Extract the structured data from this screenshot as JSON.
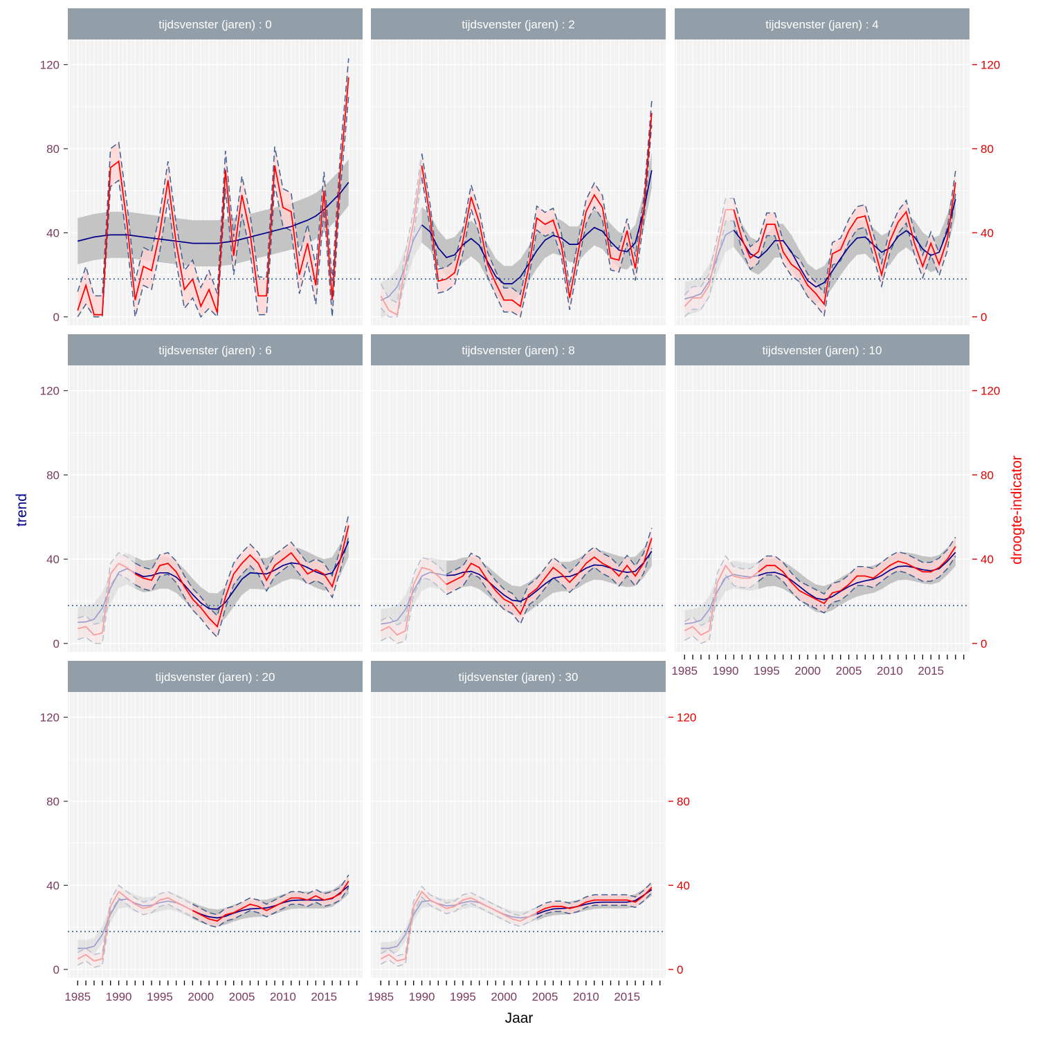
{
  "chart_data": {
    "type": "line",
    "xlabel": "Jaar",
    "ylabel_left": "trend",
    "ylabel_right": "droogte-indicator",
    "ylim": [
      -4,
      132
    ],
    "xlim": [
      1983.8,
      2019.7
    ],
    "y_ticks": [
      0,
      40,
      80,
      120
    ],
    "x_ticks": [
      1985,
      1990,
      1995,
      2000,
      2005,
      2010,
      2015
    ],
    "threshold": 18,
    "grid": true,
    "colors": {
      "trend": "#00008b",
      "trend_band": "#bfbfbf",
      "ci_dash": "#3a5f8f",
      "indicator": "#ff0000",
      "indicator_band": "#ffd5d5",
      "strip": "#929ea8",
      "panel_bg": "#f2f2f2",
      "left_axis": "#7a3a5f",
      "right_axis": "#e00000",
      "threshold": "#3a5f8f"
    },
    "panels": [
      {
        "label": "tijdsvenster (jaren) : 0",
        "window": 0,
        "years": [
          1985,
          1986,
          1987,
          1988,
          1989,
          1990,
          1991,
          1992,
          1993,
          1994,
          1995,
          1996,
          1997,
          1998,
          1999,
          2000,
          2001,
          2002,
          2003,
          2004,
          2005,
          2006,
          2007,
          2008,
          2009,
          2010,
          2011,
          2012,
          2013,
          2014,
          2015,
          2016,
          2017,
          2018
        ],
        "indicator": [
          3,
          15,
          1,
          1,
          71,
          74,
          45,
          8,
          24,
          22,
          40,
          65,
          35,
          13,
          18,
          5,
          13,
          2,
          70,
          29,
          58,
          40,
          10,
          10,
          72,
          52,
          50,
          20,
          35,
          15,
          60,
          8,
          70,
          114
        ],
        "trend": [
          36,
          37,
          38,
          38.5,
          39,
          39,
          39,
          38.5,
          38,
          37.5,
          37,
          36.5,
          36,
          35.5,
          35,
          35,
          35,
          35,
          35.5,
          36,
          37,
          38,
          39,
          40,
          41,
          42,
          43,
          44.5,
          46,
          48,
          51,
          55,
          59,
          64
        ]
      },
      {
        "label": "tijdsvenster (jaren) : 2",
        "window": 2,
        "years": [
          1985,
          1986,
          1987,
          1988,
          1989,
          1990,
          1991,
          1992,
          1993,
          1994,
          1995,
          1996,
          1997,
          1998,
          1999,
          2000,
          2001,
          2002,
          2003,
          2004,
          2005,
          2006,
          2007,
          2008,
          2009,
          2010,
          2011,
          2012,
          2013,
          2014,
          2015,
          2016,
          2017,
          2018
        ],
        "indicator": [
          10,
          3,
          1,
          25,
          45,
          72,
          48,
          17,
          18,
          21,
          36,
          57,
          45,
          25,
          16,
          8,
          8,
          5,
          23,
          47,
          44,
          46,
          34,
          9,
          30,
          50,
          58,
          52,
          28,
          27,
          41,
          23,
          50,
          97
        ],
        "trend": [
          7,
          10,
          12,
          23,
          38,
          48,
          41,
          32,
          26,
          29,
          34,
          40,
          35,
          26,
          18,
          15,
          15,
          18,
          25,
          32,
          37,
          40,
          38,
          34,
          32,
          40,
          44,
          42,
          35,
          31,
          30,
          33,
          45,
          78
        ]
      },
      {
        "label": "tijdsvenster (jaren) : 4",
        "window": 4,
        "years": [
          1985,
          1986,
          1987,
          1988,
          1989,
          1990,
          1991,
          1992,
          1993,
          1994,
          1995,
          1996,
          1997,
          1998,
          1999,
          2000,
          2001,
          2002,
          2003,
          2004,
          2005,
          2006,
          2007,
          2008,
          2009,
          2010,
          2011,
          2012,
          2013,
          2014,
          2015,
          2016,
          2017,
          2018
        ],
        "indicator": [
          5,
          9,
          9,
          15,
          33,
          51,
          51,
          37,
          28,
          31,
          44,
          44,
          31,
          25,
          22,
          15,
          11,
          6,
          30,
          32,
          41,
          47,
          48,
          34,
          20,
          36,
          45,
          50,
          35,
          24,
          35,
          25,
          37,
          64
        ],
        "trend": [
          8,
          10,
          10,
          14,
          30,
          41,
          44,
          36,
          29,
          26,
          31,
          38,
          38,
          31,
          24,
          16,
          13,
          15,
          22,
          28,
          33,
          39,
          39,
          35,
          28,
          32,
          39,
          43,
          39,
          31,
          28,
          30,
          35,
          63
        ]
      },
      {
        "label": "tijdsvenster (jaren) : 6",
        "window": 6,
        "years": [
          1985,
          1986,
          1987,
          1988,
          1989,
          1990,
          1991,
          1992,
          1993,
          1994,
          1995,
          1996,
          1997,
          1998,
          1999,
          2000,
          2001,
          2002,
          2003,
          2004,
          2005,
          2006,
          2007,
          2008,
          2009,
          2010,
          2011,
          2012,
          2013,
          2014,
          2015,
          2016,
          2017,
          2018
        ],
        "indicator": [
          7,
          8,
          4,
          5,
          33,
          38,
          36,
          33,
          31,
          30,
          37,
          38,
          34,
          27,
          21,
          17,
          12,
          8,
          22,
          33,
          38,
          42,
          38,
          30,
          37,
          40,
          43,
          38,
          33,
          35,
          33,
          27,
          40,
          56
        ],
        "trend": [
          10,
          10,
          11,
          14,
          28,
          35,
          37,
          33,
          31,
          32,
          34,
          34,
          32,
          28,
          23,
          19,
          16,
          15,
          19,
          25,
          31,
          35,
          33,
          32,
          35,
          37,
          39,
          38,
          36,
          34,
          32,
          32,
          38,
          52
        ]
      },
      {
        "label": "tijdsvenster (jaren) : 8",
        "window": 8,
        "years": [
          1985,
          1986,
          1987,
          1988,
          1989,
          1990,
          1991,
          1992,
          1993,
          1994,
          1995,
          1996,
          1997,
          1998,
          1999,
          2000,
          2001,
          2002,
          2003,
          2004,
          2005,
          2006,
          2007,
          2008,
          2009,
          2010,
          2011,
          2012,
          2013,
          2014,
          2015,
          2016,
          2017,
          2018
        ],
        "indicator": [
          6,
          8,
          4,
          6,
          28,
          36,
          35,
          32,
          28,
          30,
          32,
          38,
          36,
          30,
          25,
          21,
          19,
          14,
          23,
          26,
          31,
          36,
          33,
          29,
          33,
          38,
          41,
          38,
          36,
          32,
          37,
          32,
          38,
          50
        ],
        "trend": [
          9,
          10,
          10,
          14,
          26,
          34,
          34,
          33,
          32,
          32,
          34,
          35,
          33,
          30,
          26,
          23,
          20,
          19,
          22,
          25,
          28,
          32,
          32,
          31,
          33,
          36,
          38,
          37,
          36,
          34,
          34,
          33,
          37,
          46
        ]
      },
      {
        "label": "tijdsvenster (jaren) : 10",
        "window": 10,
        "years": [
          1985,
          1986,
          1987,
          1988,
          1989,
          1990,
          1991,
          1992,
          1993,
          1994,
          1995,
          1996,
          1997,
          1998,
          1999,
          2000,
          2001,
          2002,
          2003,
          2004,
          2005,
          2006,
          2007,
          2008,
          2009,
          2010,
          2011,
          2012,
          2013,
          2014,
          2015,
          2016,
          2017,
          2018
        ],
        "indicator": [
          6,
          8,
          4,
          6,
          29,
          37,
          32,
          31,
          31,
          34,
          37,
          37,
          34,
          29,
          25,
          23,
          21,
          19,
          24,
          25,
          28,
          32,
          32,
          31,
          34,
          37,
          39,
          38,
          36,
          34,
          34,
          36,
          40,
          46
        ],
        "trend": [
          9,
          10,
          10,
          14,
          26,
          33,
          33,
          32,
          31,
          32,
          34,
          34,
          33,
          30,
          27,
          24,
          21,
          20,
          22,
          25,
          27,
          29,
          30,
          30,
          32,
          35,
          37,
          37,
          36,
          35,
          34,
          35,
          38,
          45
        ]
      },
      {
        "label": "tijdsvenster (jaren) : 20",
        "window": 20,
        "years": [
          1985,
          1986,
          1987,
          1988,
          1989,
          1990,
          1991,
          1992,
          1993,
          1994,
          1995,
          1996,
          1997,
          1998,
          1999,
          2000,
          2001,
          2002,
          2003,
          2004,
          2005,
          2006,
          2007,
          2008,
          2009,
          2010,
          2011,
          2012,
          2013,
          2014,
          2015,
          2016,
          2017,
          2018
        ],
        "indicator": [
          5,
          7,
          4,
          5,
          30,
          37,
          34,
          31,
          29,
          30,
          33,
          34,
          32,
          30,
          28,
          26,
          24,
          23,
          26,
          27,
          29,
          31,
          30,
          28,
          30,
          32,
          34,
          34,
          33,
          35,
          33,
          34,
          36,
          42
        ],
        "trend": [
          10,
          10,
          10,
          14,
          28,
          35,
          34,
          31,
          30,
          30,
          32,
          33,
          32,
          30,
          28,
          26,
          25,
          24,
          25,
          27,
          28,
          29,
          29,
          29,
          30,
          32,
          33,
          33,
          33,
          33,
          33,
          33,
          36,
          41
        ]
      },
      {
        "label": "tijdsvenster (jaren) : 30",
        "window": 30,
        "years": [
          1985,
          1986,
          1987,
          1988,
          1989,
          1990,
          1991,
          1992,
          1993,
          1994,
          1995,
          1996,
          1997,
          1998,
          1999,
          2000,
          2001,
          2002,
          2003,
          2004,
          2005,
          2006,
          2007,
          2008,
          2009,
          2010,
          2011,
          2012,
          2013,
          2014,
          2015,
          2016,
          2017,
          2018
        ],
        "indicator": [
          5,
          7,
          4,
          5,
          30,
          37,
          33,
          31,
          29,
          30,
          33,
          34,
          32,
          30,
          28,
          26,
          24,
          23,
          25,
          27,
          29,
          30,
          30,
          29,
          30,
          32,
          33,
          33,
          33,
          33,
          33,
          32,
          35,
          39
        ],
        "trend": [
          10,
          10,
          10,
          14,
          28,
          34,
          33,
          31,
          30,
          30,
          32,
          33,
          32,
          30,
          28,
          26,
          25,
          24,
          25,
          26,
          28,
          29,
          29,
          29,
          30,
          31,
          32,
          32,
          32,
          32,
          32,
          32,
          35,
          39
        ]
      }
    ]
  }
}
